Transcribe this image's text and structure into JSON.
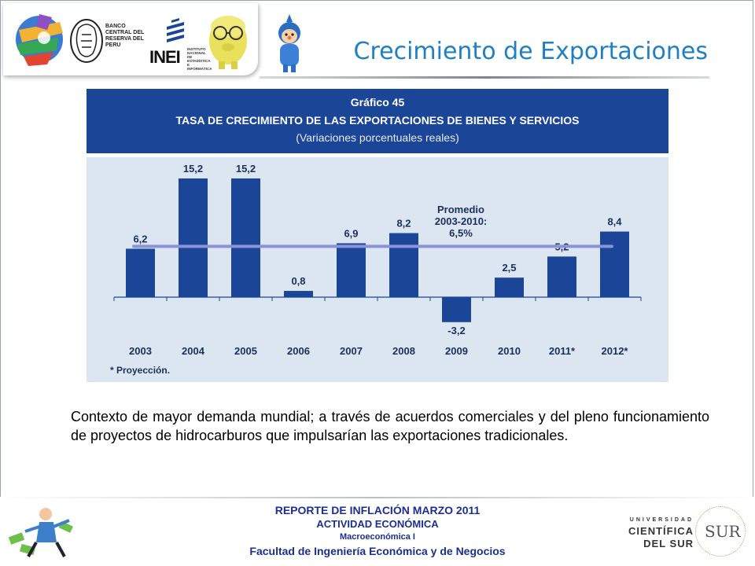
{
  "slide": {
    "title": "Crecimiento de Exportaciones",
    "body_text": "Contexto de mayor demanda mundial; a través de acuerdos comerciales y del pleno funcionamiento de proyectos de hidrocarburos que impulsarían las exportaciones tradicionales."
  },
  "logos": {
    "bcr_text": "BANCO CENTRAL DEL RESERVA DEL PERU",
    "inei_text": "INEI",
    "inei_sub": "INSTITUTO NACIONAL DE ESTADÍSTICA E INFORMÁTICA",
    "icons": [
      "globe-ribbon-logo",
      "bcr-seal-logo",
      "inei-logo",
      "piggy-bank-icon",
      "cartoon-character-icon"
    ]
  },
  "chart_header": {
    "line1": "Gráfico 45",
    "line2": "TASA DE CRECIMIENTO DE LAS EXPORTACIONES DE BIENES Y SERVICIOS",
    "line3": "(Variaciones porcentuales reales)"
  },
  "chart_data": {
    "type": "bar",
    "categories": [
      "2003",
      "2004",
      "2005",
      "2006",
      "2007",
      "2008",
      "2009",
      "2010",
      "2011*",
      "2012*"
    ],
    "values": [
      6.2,
      15.2,
      15.2,
      0.8,
      6.9,
      8.2,
      -3.2,
      2.5,
      5.2,
      8.4
    ],
    "value_labels": [
      "6,2",
      "15,2",
      "15,2",
      "0,8",
      "6,9",
      "8,2",
      "-3,2",
      "2,5",
      "5,2",
      "8,4"
    ],
    "reference_line": {
      "value": 6.5,
      "label_lines": [
        "Promedio",
        "2003-2010:",
        "6,5%"
      ]
    },
    "ylim": [
      -3.2,
      15.2
    ],
    "footnote": "* Proyección.",
    "colors": {
      "bar": "#1b4596",
      "reference_line": "#8a93d6",
      "header_bg": "#1b4596",
      "plot_bg": "#dbe6f1"
    }
  },
  "footer": {
    "line1": "REPORTE DE INFLACIÓN MARZO 2011",
    "line2": "ACTIVIDAD ECONÓMICA",
    "line3": "Macroeconómica I",
    "line4": "Facultad de Ingeniería Económica y de Negocios",
    "university_line1": "UNIVERSIDAD",
    "university_line2": "CIENTÍFICA",
    "university_line3": "DEL SUR",
    "seal_text": "SUR",
    "colors": {
      "text": "#1b2f8f"
    }
  }
}
